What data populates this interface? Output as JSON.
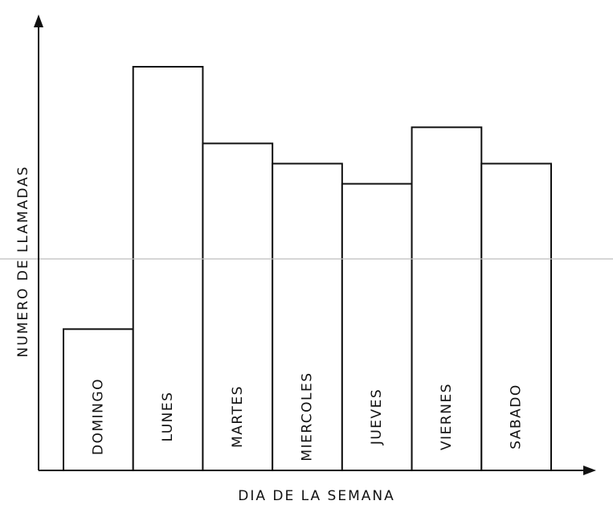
{
  "chart_data": {
    "type": "bar",
    "title": "",
    "xlabel": "DIA DE LA SEMANA",
    "ylabel": "NUMERO DE LLAMADAS",
    "categories": [
      "DOMINGO",
      "LUNES",
      "MARTES",
      "MIERCOLES",
      "JUEVES",
      "VIERNES",
      "SABADO"
    ],
    "values": [
      35,
      100,
      81,
      76,
      71,
      85,
      76
    ],
    "ylim": [
      0,
      100
    ],
    "grid": false,
    "legend": "none",
    "bar_color": "#ffffff",
    "stroke_color": "#111111"
  }
}
